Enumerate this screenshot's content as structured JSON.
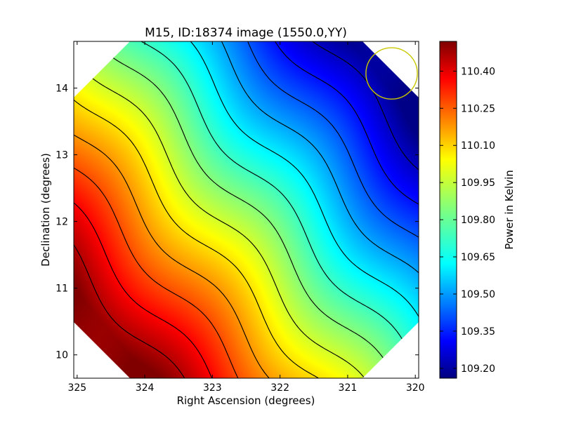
{
  "chart_data": {
    "type": "heatmap",
    "title": "M15, ID:18374 image (1550.0,YY)",
    "xlabel": "Right Ascension (degrees)",
    "ylabel": "Declination (degrees)",
    "xlim": [
      325.05,
      319.95
    ],
    "ylim": [
      9.65,
      14.7
    ],
    "x_ticks": [
      325,
      324,
      323,
      322,
      321,
      320
    ],
    "x_tick_labels": [
      "325",
      "324",
      "323",
      "322",
      "321",
      "320"
    ],
    "y_ticks": [
      10,
      11,
      12,
      13,
      14
    ],
    "y_tick_labels": [
      "10",
      "11",
      "12",
      "13",
      "14"
    ],
    "colorbar": {
      "label": "Power in Kelvin",
      "colormap": "jet",
      "range": [
        109.16,
        110.52
      ],
      "ticks": [
        109.2,
        109.35,
        109.5,
        109.65,
        109.8,
        109.95,
        110.1,
        110.25,
        110.4
      ],
      "tick_labels": [
        "109.20",
        "109.35",
        "109.50",
        "109.65",
        "109.80",
        "109.95",
        "110.10",
        "110.25",
        "110.40"
      ]
    },
    "field_gradient": {
      "max_value": 110.52,
      "max_at": [
        325.05,
        11.0
      ],
      "min_value": 109.17,
      "min_at": [
        320.8,
        14.5
      ]
    },
    "contour_levels": [
      109.25,
      109.35,
      109.45,
      109.55,
      109.65,
      109.75,
      109.85,
      109.95,
      110.05,
      110.15,
      110.25,
      110.35,
      110.45
    ],
    "beam_marker": {
      "ra": 320.35,
      "dec": 14.22,
      "radius_deg": 0.38,
      "color": "#c8c800"
    },
    "colors": {
      "contour": "#000000",
      "beam": "#c8c800"
    }
  }
}
